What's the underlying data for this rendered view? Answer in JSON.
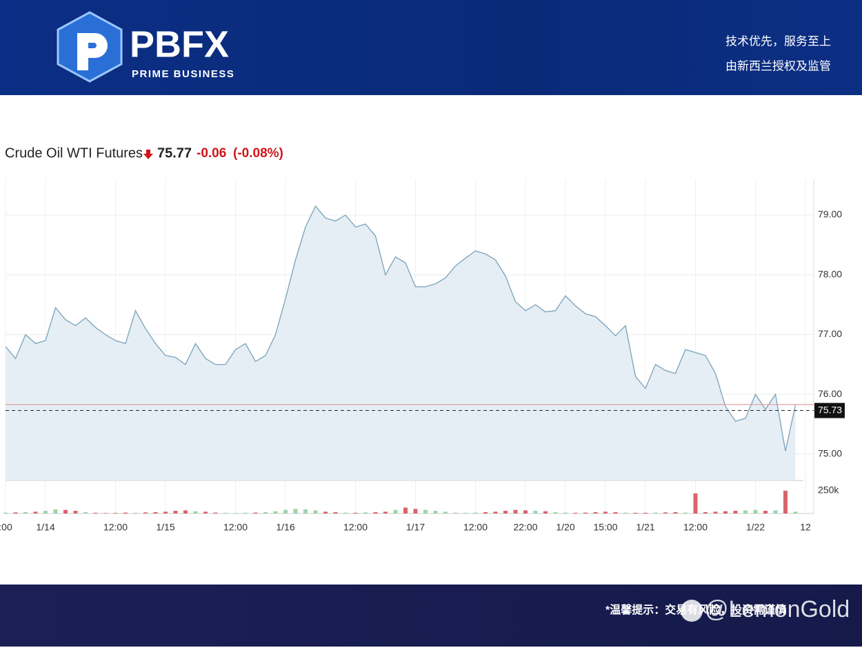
{
  "header": {
    "brand": "PBFX",
    "brand_sub": "PRIME BUSINESS",
    "slogan": "技术优先，服务至上",
    "regulation": "由新西兰授权及监管"
  },
  "footer": {
    "notice": "*温馨提示：交易有风险，投资需谨慎",
    "watermark": "@LemonGold"
  },
  "chart_data": {
    "type": "line",
    "title": "Crude Oil WTI Futures",
    "last_price": "75.77",
    "change": "-0.06",
    "change_pct": "(-0.08%)",
    "color": "#7fa7bd",
    "fill": "#e6eef5",
    "grid": true,
    "categories": [
      ":00",
      null,
      null,
      null,
      "1/14",
      null,
      null,
      null,
      null,
      null,
      null,
      "12:00",
      null,
      null,
      null,
      null,
      "1/15",
      null,
      null,
      null,
      null,
      null,
      null,
      "12:00",
      null,
      null,
      null,
      null,
      "1/16",
      null,
      null,
      null,
      null,
      null,
      null,
      "12:00",
      null,
      null,
      null,
      null,
      null,
      "1/17",
      null,
      null,
      null,
      null,
      null,
      "12:00",
      null,
      null,
      null,
      null,
      "22:00",
      null,
      null,
      null,
      "1/20",
      null,
      null,
      null,
      "15:00",
      null,
      null,
      null,
      "1/21",
      null,
      null,
      null,
      null,
      "12:00",
      null,
      null,
      null,
      null,
      null,
      "1/22",
      null,
      null,
      null,
      null,
      "12"
    ],
    "values": [
      76.8,
      76.6,
      77.0,
      76.85,
      76.9,
      77.45,
      77.25,
      77.15,
      77.28,
      77.12,
      77.0,
      76.9,
      76.85,
      77.4,
      77.1,
      76.85,
      76.65,
      76.62,
      76.5,
      76.85,
      76.6,
      76.5,
      76.5,
      76.75,
      76.85,
      76.55,
      76.65,
      77.0,
      77.6,
      78.25,
      78.8,
      79.15,
      78.95,
      78.9,
      79.0,
      78.8,
      78.85,
      78.65,
      78.0,
      78.3,
      78.2,
      77.8,
      77.8,
      77.85,
      77.95,
      78.15,
      78.28,
      78.4,
      78.35,
      78.25,
      77.98,
      77.55,
      77.4,
      77.5,
      77.38,
      77.4,
      77.65,
      77.48,
      77.35,
      77.3,
      77.15,
      76.98,
      77.15,
      76.3,
      76.1,
      76.5,
      76.4,
      76.35,
      76.75,
      76.7,
      76.65,
      76.35,
      75.8,
      75.55,
      75.6,
      76.0,
      75.75,
      76.0,
      75.05,
      75.82,
      null
    ],
    "ylim": [
      74.56,
      79.6
    ],
    "yticks": [
      {
        "value": 75,
        "label": "75.00"
      },
      {
        "value": 76,
        "label": "76.00"
      },
      {
        "value": 77,
        "label": "77.00"
      },
      {
        "value": 78,
        "label": "78.00"
      },
      {
        "value": 79,
        "label": "79.00"
      }
    ],
    "reference_line": 75.83,
    "last_marker": 75.73,
    "volume": {
      "values": [
        10000,
        12000,
        15000,
        20000,
        30000,
        45000,
        40000,
        30000,
        15000,
        8000,
        5000,
        6000,
        10000,
        8000,
        12000,
        15000,
        20000,
        30000,
        35000,
        25000,
        20000,
        10000,
        8000,
        6000,
        8000,
        10000,
        15000,
        25000,
        40000,
        50000,
        45000,
        35000,
        20000,
        15000,
        10000,
        8000,
        12000,
        15000,
        20000,
        40000,
        65000,
        50000,
        40000,
        30000,
        20000,
        10000,
        8000,
        10000,
        15000,
        20000,
        30000,
        40000,
        35000,
        30000,
        25000,
        15000,
        10000,
        8000,
        10000,
        15000,
        20000,
        15000,
        10000,
        8000,
        8000,
        10000,
        12000,
        15000,
        10000,
        220000,
        15000,
        20000,
        25000,
        30000,
        35000,
        40000,
        30000,
        35000,
        250000,
        20000,
        null
      ],
      "ylim": [
        0,
        340000
      ],
      "yticks": [
        {
          "value": 250000,
          "label": "250k"
        }
      ],
      "up_color": "#9fd3ad",
      "down_color": "#d9646b"
    }
  }
}
